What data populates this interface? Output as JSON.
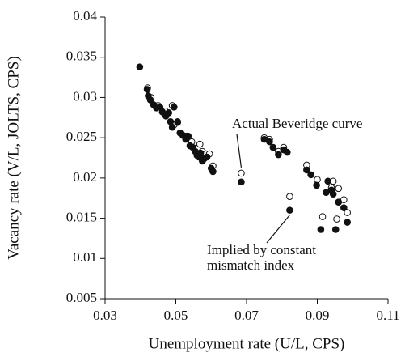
{
  "chart_data": {
    "type": "scatter",
    "xlabel": "Unemployment rate (U/L, CPS)",
    "ylabel": "Vacancy rate (V/L, JOLTS, CPS)",
    "xlim": [
      0.03,
      0.11
    ],
    "xticks": [
      0.03,
      0.05,
      0.07,
      0.09,
      0.11
    ],
    "ylim": [
      0.005,
      0.04
    ],
    "yticks": [
      0.005,
      0.01,
      0.015,
      0.02,
      0.025,
      0.03,
      0.035,
      0.04
    ],
    "annotations": [
      {
        "lines": [
          "Actual Beveridge curve"
        ],
        "series": 0,
        "point": 15
      },
      {
        "lines": [
          "Implied by constant",
          "mismatch index"
        ],
        "series": 1,
        "point": 36
      }
    ],
    "series": [
      {
        "marker": "open",
        "color": "#111111",
        "x": [
          0.042,
          0.043,
          0.045,
          0.047,
          0.049,
          0.0495,
          0.0505,
          0.053,
          0.0545,
          0.056,
          0.0568,
          0.0575,
          0.0585,
          0.0595,
          0.0605,
          0.0685,
          0.075,
          0.0765,
          0.079,
          0.0805,
          0.0822,
          0.087,
          0.09,
          0.0915,
          0.094,
          0.0945,
          0.0955,
          0.096,
          0.0975,
          0.0985
        ],
        "values": [
          0.0312,
          0.03,
          0.029,
          0.0283,
          0.029,
          0.0266,
          0.0269,
          0.0252,
          0.0245,
          0.0237,
          0.0242,
          0.0233,
          0.023,
          0.023,
          0.0215,
          0.0206,
          0.025,
          0.0248,
          0.0233,
          0.0238,
          0.0177,
          0.0216,
          0.0198,
          0.0152,
          0.0188,
          0.0196,
          0.0149,
          0.0187,
          0.0173,
          0.0157
        ]
      },
      {
        "marker": "filled",
        "color": "#111111",
        "x": [
          0.0398,
          0.0419,
          0.0422,
          0.0428,
          0.0437,
          0.0445,
          0.0455,
          0.0462,
          0.0472,
          0.048,
          0.0485,
          0.049,
          0.0495,
          0.0505,
          0.0512,
          0.052,
          0.0528,
          0.0535,
          0.054,
          0.0548,
          0.0555,
          0.056,
          0.0565,
          0.057,
          0.0575,
          0.058,
          0.0588,
          0.06,
          0.0605,
          0.0685,
          0.075,
          0.0765,
          0.0775,
          0.079,
          0.0805,
          0.0815,
          0.0822,
          0.087,
          0.0882,
          0.0898,
          0.091,
          0.0925,
          0.093,
          0.094,
          0.0945,
          0.0952,
          0.096,
          0.0975,
          0.0985
        ],
        "values": [
          0.0338,
          0.031,
          0.0302,
          0.0297,
          0.0291,
          0.0287,
          0.0288,
          0.0282,
          0.0277,
          0.0281,
          0.027,
          0.0263,
          0.0288,
          0.027,
          0.0256,
          0.0253,
          0.0248,
          0.0252,
          0.024,
          0.0238,
          0.0233,
          0.0228,
          0.0226,
          0.0231,
          0.0221,
          0.0224,
          0.0226,
          0.0212,
          0.0208,
          0.0195,
          0.0248,
          0.0245,
          0.0238,
          0.0229,
          0.0235,
          0.0232,
          0.016,
          0.021,
          0.0204,
          0.0191,
          0.0136,
          0.0182,
          0.0196,
          0.0185,
          0.018,
          0.0136,
          0.017,
          0.0163,
          0.0145
        ]
      }
    ]
  }
}
